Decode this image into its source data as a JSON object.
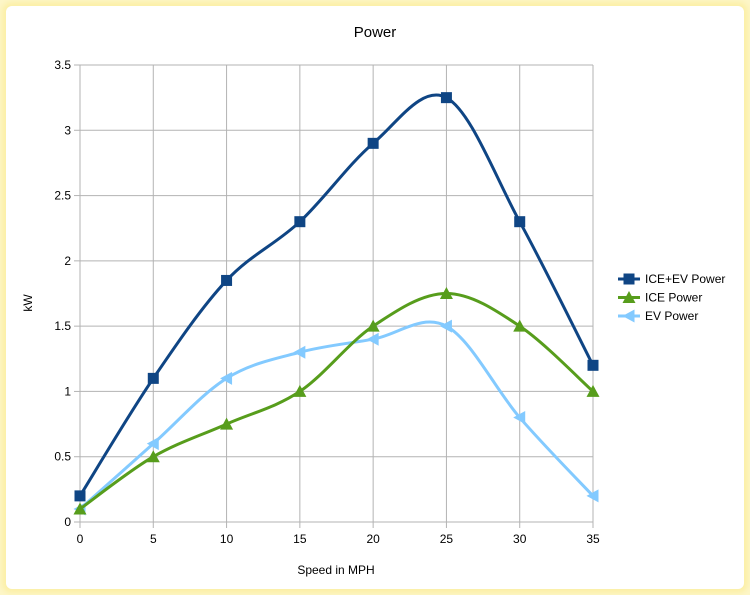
{
  "chart_data": {
    "type": "line",
    "title": "Power",
    "xlabel": "Speed in MPH",
    "ylabel": "kW",
    "x": [
      0,
      5,
      10,
      15,
      20,
      25,
      30,
      35
    ],
    "xlim": [
      0,
      35
    ],
    "ylim": [
      0,
      3.5
    ],
    "xticks": [
      "0",
      "5",
      "10",
      "15",
      "20",
      "25",
      "30",
      "35"
    ],
    "yticks": [
      "0",
      "0.5",
      "1",
      "1.5",
      "2",
      "2.5",
      "3",
      "3.5"
    ],
    "grid": true,
    "legend_position": "right",
    "series": [
      {
        "name": "ICE+EV Power",
        "color": "#0f4584",
        "marker": "square",
        "values": [
          0.2,
          1.1,
          1.85,
          2.3,
          2.9,
          3.25,
          2.3,
          1.2
        ]
      },
      {
        "name": "ICE Power",
        "color": "#579d1c",
        "marker": "triangle-up",
        "values": [
          0.1,
          0.5,
          0.75,
          1.0,
          1.5,
          1.75,
          1.5,
          1.0
        ]
      },
      {
        "name": "EV Power",
        "color": "#83caff",
        "marker": "triangle-left",
        "values": [
          0.1,
          0.6,
          1.1,
          1.3,
          1.4,
          1.5,
          0.8,
          0.2
        ]
      }
    ]
  }
}
